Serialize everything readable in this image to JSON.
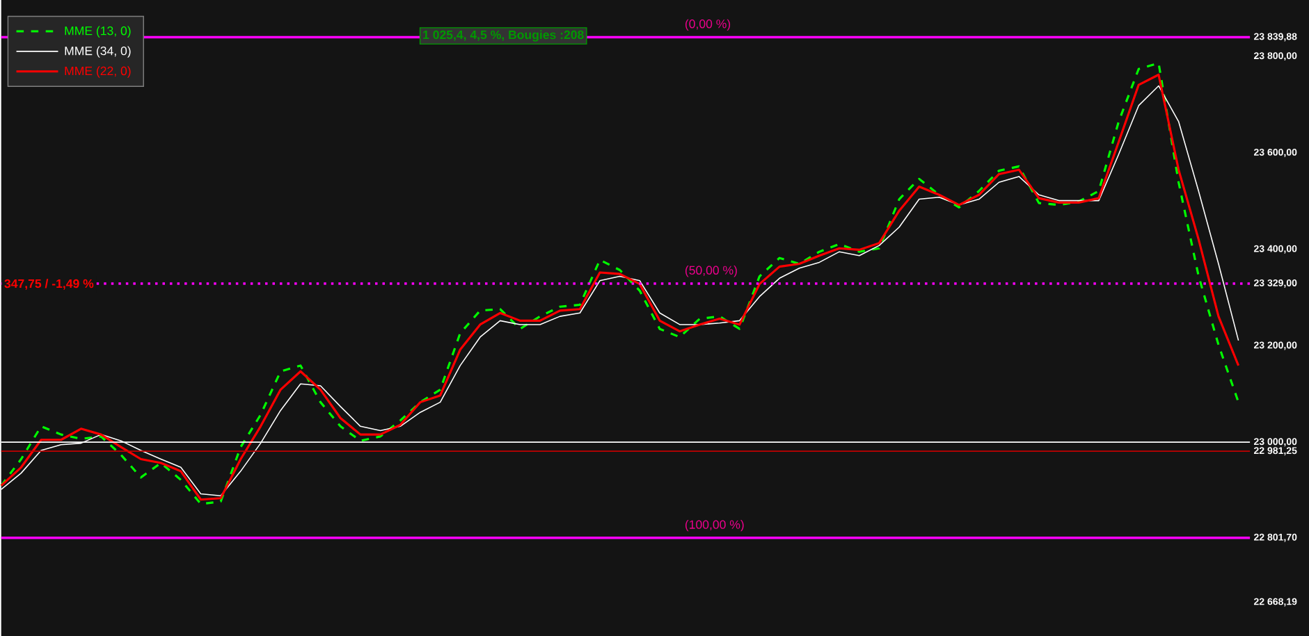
{
  "chart_data": {
    "type": "line",
    "categories": [
      null,
      null,
      null,
      null,
      null,
      null,
      null,
      null,
      null,
      null,
      null,
      null,
      null,
      null,
      null,
      null,
      null,
      null,
      null,
      null,
      null,
      null,
      null,
      null,
      null,
      null,
      null,
      null,
      null,
      null,
      null,
      null,
      null,
      null,
      null,
      null,
      null,
      null,
      null,
      null,
      null,
      null,
      null,
      null,
      null,
      null,
      null,
      null,
      null,
      null,
      null,
      null,
      null,
      null,
      null,
      null,
      null,
      null,
      null,
      null,
      null,
      null,
      null
    ],
    "series": [
      {
        "name": "MME (13, 0)",
        "color": "#00ff00",
        "line_style": "dashed",
        "values": [
          22910,
          22965,
          23033,
          23016,
          23007,
          23012,
          22974,
          22927,
          22957,
          22922,
          22872,
          22877,
          22990,
          23057,
          23147,
          23159,
          23083,
          23033,
          23003,
          23012,
          23045,
          23083,
          23109,
          23226,
          23273,
          23276,
          23235,
          23261,
          23281,
          23285,
          23378,
          23357,
          23314,
          23235,
          23218,
          23256,
          23261,
          23235,
          23344,
          23382,
          23370,
          23395,
          23411,
          23395,
          23402,
          23504,
          23546,
          23513,
          23487,
          23521,
          23563,
          23572,
          23496,
          23492,
          23499,
          23521,
          23665,
          23774,
          23786,
          23539,
          23345,
          23202,
          23083
        ]
      },
      {
        "name": "MME (34, 0)",
        "color": "#ffffff",
        "line_style": "solid",
        "values": [
          22902,
          22936,
          22983,
          22995,
          22998,
          23016,
          23003,
          22983,
          22965,
          22948,
          22893,
          22889,
          22940,
          22998,
          23066,
          23121,
          23117,
          23074,
          23033,
          23024,
          23033,
          23062,
          23083,
          23159,
          23218,
          23252,
          23244,
          23244,
          23261,
          23268,
          23335,
          23344,
          23335,
          23268,
          23244,
          23244,
          23247,
          23252,
          23302,
          23340,
          23361,
          23373,
          23395,
          23387,
          23408,
          23446,
          23504,
          23508,
          23492,
          23504,
          23539,
          23551,
          23513,
          23501,
          23501,
          23501,
          23597,
          23698,
          23739,
          23665,
          23521,
          23370,
          23211
        ]
      },
      {
        "name": "MME (22, 0)",
        "color": "#ff0000",
        "line_style": "solid",
        "values": [
          22910,
          22948,
          23005,
          23005,
          23028,
          23016,
          22990,
          22965,
          22957,
          22940,
          22881,
          22884,
          22965,
          23033,
          23109,
          23147,
          23109,
          23050,
          23016,
          23016,
          23036,
          23083,
          23097,
          23192,
          23244,
          23268,
          23252,
          23252,
          23273,
          23276,
          23352,
          23349,
          23328,
          23252,
          23230,
          23244,
          23256,
          23244,
          23328,
          23364,
          23370,
          23387,
          23402,
          23399,
          23413,
          23480,
          23530,
          23513,
          23492,
          23513,
          23556,
          23565,
          23506,
          23497,
          23497,
          23506,
          23623,
          23741,
          23762,
          23565,
          23421,
          23261,
          23159
        ]
      }
    ],
    "ylim": [
      22598,
      23917
    ],
    "yticks": [
      {
        "value": 23839.88,
        "label": "23 839,88"
      },
      {
        "value": 23800,
        "label": "23 800,00"
      },
      {
        "value": 23600,
        "label": "23 600,00"
      },
      {
        "value": 23400,
        "label": "23 400,00"
      },
      {
        "value": 23329,
        "label": "23 329,00"
      },
      {
        "value": 23200,
        "label": "23 200,00"
      },
      {
        "value": 23000,
        "label": "23 000,00"
      },
      {
        "value": 22981.25,
        "label": "22 981,25"
      },
      {
        "value": 22801.7,
        "label": "22 801,70"
      },
      {
        "value": 22668.19,
        "label": "22 668,19"
      }
    ],
    "tick_labels": "y",
    "ref_lines": [
      {
        "axis": "y",
        "value": 23839.88,
        "color": "#ff00ff",
        "line_style": "solid"
      },
      {
        "axis": "y",
        "value": 23329,
        "color": "#ff00ff",
        "line_style": "dotted"
      },
      {
        "axis": "y",
        "value": 22801.7,
        "color": "#ff00ff",
        "line_style": "solid"
      },
      {
        "axis": "y",
        "value": 23000,
        "color": "#ffffff",
        "line_style": "solid"
      },
      {
        "axis": "y",
        "value": 22981.25,
        "color": "#c00000",
        "line_style": "solid"
      }
    ],
    "annotations": [
      "1 025,4, 4,5 %, Bougies :208",
      "347,75 / -1,49 %",
      {
        "text": "(0,00 %)",
        "y": 23839.88
      },
      {
        "text": "(50,00 %)",
        "y": 23329
      },
      {
        "text": "(100,00 %)",
        "y": 22801.7
      }
    ],
    "legend": "top left",
    "grid": false,
    "marker": "none"
  }
}
